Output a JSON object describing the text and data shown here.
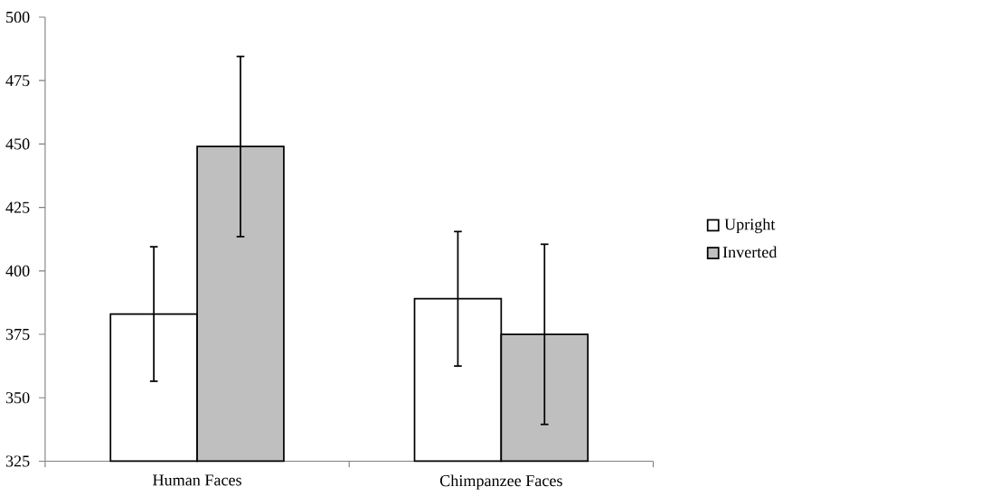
{
  "chart_data": {
    "type": "bar",
    "categories": [
      "Human Faces",
      "Chimpanzee Faces"
    ],
    "series": [
      {
        "name": "Upright",
        "color": "#ffffff",
        "values": [
          383,
          389
        ],
        "errors": [
          26.5,
          26.5
        ]
      },
      {
        "name": "Inverted",
        "color": "#bfbfbf",
        "values": [
          449,
          375
        ],
        "errors": [
          35.5,
          35.5
        ]
      }
    ],
    "ylim": [
      325,
      500
    ],
    "yticks": [
      325,
      350,
      375,
      400,
      425,
      450,
      475,
      500
    ],
    "legend": "right"
  }
}
